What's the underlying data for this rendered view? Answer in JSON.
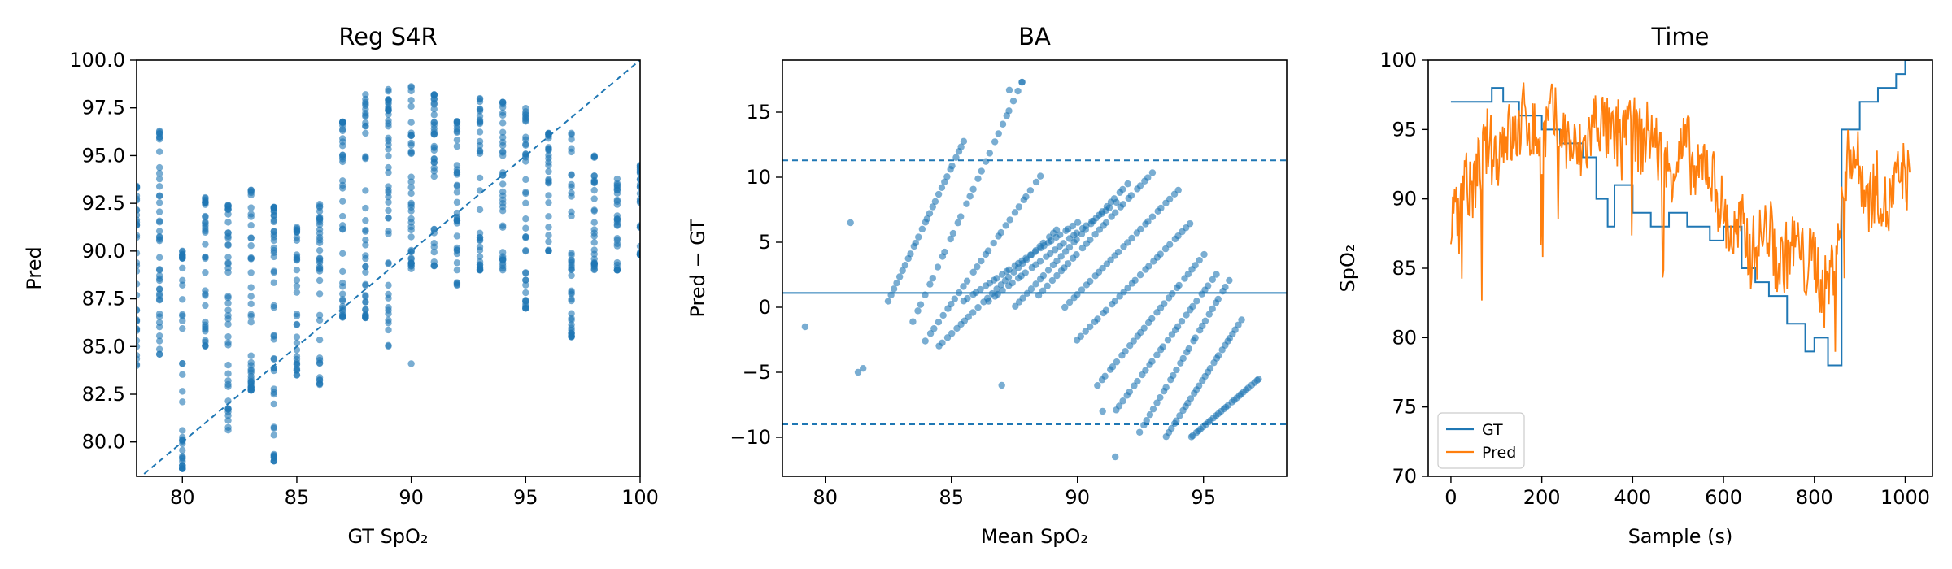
{
  "colors": {
    "blue": "#1f77b4",
    "orange": "#ff7f0e"
  },
  "chart_data": [
    {
      "type": "scatter",
      "title": "Reg S4R",
      "xlabel": "GT SpO₂",
      "ylabel": "Pred",
      "xlim": [
        78,
        100
      ],
      "ylim": [
        78.2,
        100
      ],
      "xticks": [
        "80",
        "85",
        "90",
        "95",
        "100"
      ],
      "yticks": [
        "80.0",
        "82.5",
        "85.0",
        "87.5",
        "90.0",
        "92.5",
        "95.0",
        "97.5",
        "100.0"
      ],
      "reference_line": "y = x (dashed)",
      "columns": [
        {
          "x": 78,
          "y_min": 84.0,
          "y_max": 93.5
        },
        {
          "x": 79,
          "y_min": 84.5,
          "y_max": 96.4
        },
        {
          "x": 80,
          "y_min": 78.6,
          "y_max": 90.0
        },
        {
          "x": 81,
          "y_min": 85.0,
          "y_max": 92.8
        },
        {
          "x": 82,
          "y_min": 80.6,
          "y_max": 92.4
        },
        {
          "x": 83,
          "y_min": 82.7,
          "y_max": 93.2
        },
        {
          "x": 84,
          "y_min": 79.0,
          "y_max": 92.3
        },
        {
          "x": 85,
          "y_min": 83.5,
          "y_max": 91.3
        },
        {
          "x": 86,
          "y_min": 83.0,
          "y_max": 92.5
        },
        {
          "x": 87,
          "y_min": 86.5,
          "y_max": 96.8
        },
        {
          "x": 88,
          "y_min": 86.5,
          "y_max": 98.2
        },
        {
          "x": 89,
          "y_min": 85.0,
          "y_max": 98.5
        },
        {
          "x": 90,
          "y_min": 89.0,
          "y_max": 99.0
        },
        {
          "x": 91,
          "y_min": 89.2,
          "y_max": 98.2
        },
        {
          "x": 92,
          "y_min": 88.2,
          "y_max": 96.8
        },
        {
          "x": 93,
          "y_min": 89.0,
          "y_max": 98.0
        },
        {
          "x": 94,
          "y_min": 89.0,
          "y_max": 97.8
        },
        {
          "x": 95,
          "y_min": 87.0,
          "y_max": 97.5
        },
        {
          "x": 96,
          "y_min": 90.0,
          "y_max": 96.2
        },
        {
          "x": 97,
          "y_min": 85.5,
          "y_max": 96.2
        },
        {
          "x": 98,
          "y_min": 89.0,
          "y_max": 95.0
        },
        {
          "x": 99,
          "y_min": 89.0,
          "y_max": 93.8
        },
        {
          "x": 100,
          "y_min": 89.8,
          "y_max": 94.5
        }
      ],
      "outliers": [
        {
          "x": 84,
          "y": 79.3
        },
        {
          "x": 84,
          "y": 79.0
        },
        {
          "x": 80,
          "y": 78.6
        },
        {
          "x": 90,
          "y": 84.1
        },
        {
          "x": 95,
          "y": 87.0
        },
        {
          "x": 83,
          "y": 82.7
        }
      ]
    },
    {
      "type": "scatter",
      "title": "BA",
      "xlabel": "Mean SpO₂",
      "ylabel": "Pred − GT",
      "xlim": [
        78.3,
        98.3
      ],
      "ylim": [
        -13,
        19
      ],
      "xticks": [
        "80",
        "85",
        "90",
        "95"
      ],
      "yticks": [
        "−10",
        "−5",
        "0",
        "5",
        "10",
        "15"
      ],
      "mean_line": 1.1,
      "upper_loa": 11.3,
      "lower_loa": -9.0,
      "bands": [
        {
          "x0": 82.5,
          "y0": 0.5,
          "x1": 85.5,
          "y1": 12.8
        },
        {
          "x0": 83.5,
          "y0": -1.0,
          "x1": 87.8,
          "y1": 17.3
        },
        {
          "x0": 84.0,
          "y0": -2.5,
          "x1": 88.5,
          "y1": 10.0
        },
        {
          "x0": 84.5,
          "y0": -3.0,
          "x1": 89.2,
          "y1": 6.0
        },
        {
          "x0": 85.5,
          "y0": 0.5,
          "x1": 90.0,
          "y1": 6.5
        },
        {
          "x0": 86.5,
          "y0": 0.5,
          "x1": 91.5,
          "y1": 8.0
        },
        {
          "x0": 87.5,
          "y0": 0.0,
          "x1": 92.0,
          "y1": 9.5
        },
        {
          "x0": 88.5,
          "y0": 1.0,
          "x1": 93.0,
          "y1": 10.4
        },
        {
          "x0": 89.5,
          "y0": 0.0,
          "x1": 94.0,
          "y1": 9.0
        },
        {
          "x0": 90.0,
          "y0": -2.5,
          "x1": 94.5,
          "y1": 6.5
        },
        {
          "x0": 90.8,
          "y0": -6.0,
          "x1": 95.0,
          "y1": 4.0
        },
        {
          "x0": 91.5,
          "y0": -8.0,
          "x1": 95.5,
          "y1": 2.5
        },
        {
          "x0": 92.5,
          "y0": -9.5,
          "x1": 96.0,
          "y1": 2.0
        },
        {
          "x0": 93.5,
          "y0": -10.0,
          "x1": 96.5,
          "y1": -1.0
        },
        {
          "x0": 94.5,
          "y0": -10.0,
          "x1": 97.2,
          "y1": -5.5
        }
      ],
      "outliers": [
        {
          "x": 79.2,
          "y": -1.5
        },
        {
          "x": 81.3,
          "y": -5.0
        },
        {
          "x": 81.5,
          "y": -4.7
        },
        {
          "x": 81.0,
          "y": 6.5
        },
        {
          "x": 87.0,
          "y": -6.0
        },
        {
          "x": 91.0,
          "y": -8.0
        },
        {
          "x": 91.5,
          "y": -11.5
        },
        {
          "x": 87.3,
          "y": 16.7
        },
        {
          "x": 87.8,
          "y": 17.3
        }
      ]
    },
    {
      "type": "line",
      "title": "Time",
      "xlabel": "Sample (s)",
      "ylabel": "SpO₂",
      "xlim": [
        -50,
        1060
      ],
      "ylim": [
        70,
        100
      ],
      "xticks": [
        "0",
        "200",
        "400",
        "600",
        "800",
        "1000"
      ],
      "yticks": [
        "70",
        "75",
        "80",
        "85",
        "90",
        "95",
        "100"
      ],
      "legend_position": "lower-left",
      "series": [
        {
          "name": "GT",
          "color": "#1f77b4",
          "points": [
            [
              0,
              97
            ],
            [
              90,
              97
            ],
            [
              90,
              98
            ],
            [
              115,
              98
            ],
            [
              115,
              97
            ],
            [
              150,
              97
            ],
            [
              150,
              96
            ],
            [
              200,
              96
            ],
            [
              200,
              95
            ],
            [
              240,
              95
            ],
            [
              240,
              94
            ],
            [
              290,
              94
            ],
            [
              290,
              93
            ],
            [
              320,
              93
            ],
            [
              320,
              90
            ],
            [
              345,
              90
            ],
            [
              345,
              88
            ],
            [
              360,
              88
            ],
            [
              360,
              91
            ],
            [
              400,
              91
            ],
            [
              400,
              89
            ],
            [
              440,
              89
            ],
            [
              440,
              88
            ],
            [
              480,
              88
            ],
            [
              480,
              89
            ],
            [
              520,
              89
            ],
            [
              520,
              88
            ],
            [
              570,
              88
            ],
            [
              570,
              87
            ],
            [
              600,
              87
            ],
            [
              600,
              88
            ],
            [
              640,
              88
            ],
            [
              640,
              85
            ],
            [
              670,
              85
            ],
            [
              670,
              84
            ],
            [
              700,
              84
            ],
            [
              700,
              83
            ],
            [
              740,
              83
            ],
            [
              740,
              81
            ],
            [
              780,
              81
            ],
            [
              780,
              79
            ],
            [
              800,
              79
            ],
            [
              800,
              80
            ],
            [
              830,
              80
            ],
            [
              830,
              78
            ],
            [
              860,
              78
            ],
            [
              860,
              95
            ],
            [
              900,
              95
            ],
            [
              900,
              97
            ],
            [
              940,
              97
            ],
            [
              940,
              98
            ],
            [
              980,
              98
            ],
            [
              980,
              99
            ],
            [
              1000,
              99
            ],
            [
              1000,
              100
            ],
            [
              1010,
              100
            ]
          ]
        },
        {
          "name": "Pred",
          "color": "#ff7f0e",
          "points": [
            [
              0,
              87
            ],
            [
              10,
              91
            ],
            [
              20,
              88
            ],
            [
              30,
              93
            ],
            [
              40,
              90
            ],
            [
              60,
              92
            ],
            [
              80,
              94
            ],
            [
              100,
              93
            ],
            [
              120,
              95
            ],
            [
              140,
              94
            ],
            [
              160,
              96
            ],
            [
              180,
              95
            ],
            [
              200,
              94
            ],
            [
              220,
              96
            ],
            [
              240,
              95
            ],
            [
              260,
              94
            ],
            [
              280,
              93
            ],
            [
              300,
              94
            ],
            [
              320,
              96
            ],
            [
              340,
              95
            ],
            [
              360,
              94
            ],
            [
              380,
              96
            ],
            [
              400,
              95
            ],
            [
              420,
              94
            ],
            [
              440,
              95
            ],
            [
              460,
              93
            ],
            [
              480,
              92
            ],
            [
              500,
              93
            ],
            [
              520,
              94
            ],
            [
              540,
              91
            ],
            [
              560,
              93
            ],
            [
              580,
              91
            ],
            [
              600,
              89
            ],
            [
              620,
              87
            ],
            [
              640,
              88
            ],
            [
              660,
              86
            ],
            [
              680,
              87
            ],
            [
              700,
              88
            ],
            [
              720,
              85
            ],
            [
              740,
              86
            ],
            [
              760,
              87
            ],
            [
              780,
              85
            ],
            [
              800,
              86
            ],
            [
              820,
              83
            ],
            [
              840,
              85
            ],
            [
              860,
              89
            ],
            [
              880,
              94
            ],
            [
              900,
              92
            ],
            [
              920,
              90
            ],
            [
              940,
              91
            ],
            [
              960,
              89
            ],
            [
              980,
              91
            ],
            [
              1000,
              92
            ],
            [
              1010,
              91
            ]
          ],
          "y_min": 78.5,
          "y_max": 99.2
        }
      ]
    }
  ]
}
